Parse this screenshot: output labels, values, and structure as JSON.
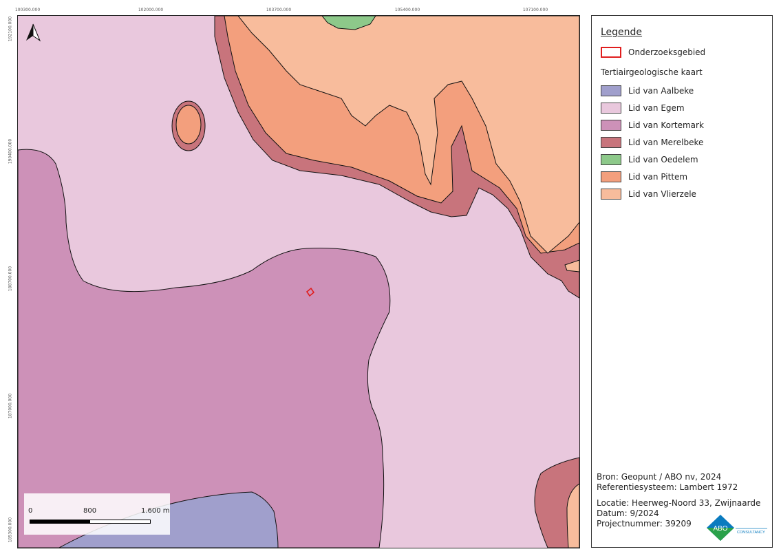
{
  "map": {
    "top_coords": [
      "100300.000",
      "102000.000",
      "103700.000",
      "105400.000",
      "107100.000"
    ],
    "left_coords": [
      "192100.000",
      "190400.000",
      "188700.000",
      "187000.000",
      "185300.000"
    ],
    "colors": {
      "aalbeke": "#a09fcc",
      "egem": "#e9c8dd",
      "kortemark": "#cd91b8",
      "merelbeke": "#c8747c",
      "oedelem": "#8dc98a",
      "pittem": "#f39f7d",
      "vlierzele": "#f8bc9c",
      "study_area": "#e01e1e"
    }
  },
  "scalebar": {
    "labels": [
      "0",
      "800",
      "1.600 m"
    ]
  },
  "legend": {
    "title": "Legende",
    "study_area": "Onderzoeksgebied",
    "subtitle": "Tertiairgeologische kaart",
    "items": [
      {
        "label": "Lid van Aalbeke",
        "color": "#a09fcc"
      },
      {
        "label": "Lid van Egem",
        "color": "#e9c8dd"
      },
      {
        "label": "Lid van Kortemark",
        "color": "#cd91b8"
      },
      {
        "label": "Lid van Merelbeke",
        "color": "#c8747c"
      },
      {
        "label": "Lid van Oedelem",
        "color": "#8dc98a"
      },
      {
        "label": "Lid van Pittem",
        "color": "#f39f7d"
      },
      {
        "label": "Lid van Vlierzele",
        "color": "#f8bc9c"
      }
    ]
  },
  "info": {
    "source": "Bron: Geopunt / ABO nv, 2024",
    "reference": "Referentiesysteem: Lambert 1972",
    "location": "Locatie: Heerweg-Noord 33, Zwijnaarde",
    "date": "Datum: 9/2024",
    "project": "Projectnummer: 39209",
    "logo_text": "ABO",
    "logo_sub": "CONSULTANCY"
  }
}
